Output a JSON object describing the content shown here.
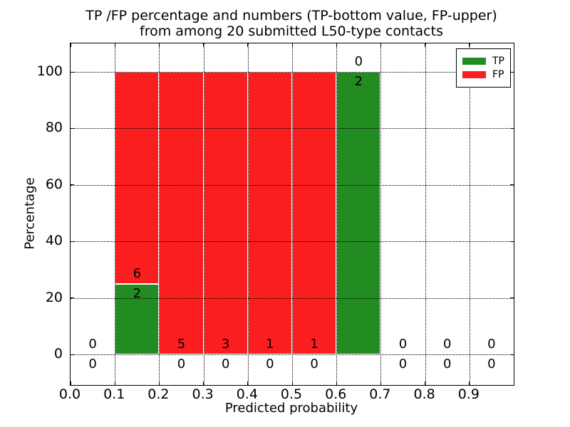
{
  "title": {
    "line1": "TP /FP percentage and numbers (TP-bottom value, FP-upper)",
    "line2": "from among 20 submitted L50-type contacts"
  },
  "axes": {
    "xlabel": "Predicted probability",
    "ylabel": "Percentage",
    "xtick_labels": [
      "0.0",
      "0.1",
      "0.2",
      "0.3",
      "0.4",
      "0.5",
      "0.6",
      "0.7",
      "0.8",
      "0.9"
    ],
    "xtick_values": [
      0.0,
      0.1,
      0.2,
      0.3,
      0.4,
      0.5,
      0.6,
      0.7,
      0.8,
      0.9
    ],
    "ytick_labels": [
      "0",
      "20",
      "40",
      "60",
      "80",
      "100"
    ],
    "ytick_values": [
      0,
      20,
      40,
      60,
      80,
      100
    ]
  },
  "legend": {
    "items": [
      {
        "label": "TP",
        "color": "#228b22"
      },
      {
        "label": "FP",
        "color": "#fb1e1e"
      }
    ]
  },
  "colors": {
    "tp": "#228b22",
    "fp": "#fb1e1e",
    "grid": "#000000",
    "background": "#ffffff"
  },
  "chart_data": {
    "type": "bar",
    "stacked": true,
    "title": "TP /FP percentage and numbers (TP-bottom value, FP-upper) from among 20 submitted L50-type contacts",
    "xlabel": "Predicted probability",
    "ylabel": "Percentage",
    "xlim": [
      0.0,
      1.0
    ],
    "ylim": [
      -11,
      110
    ],
    "grid": true,
    "legend_position": "upper right",
    "total_contacts": 20,
    "series": [
      {
        "name": "TP",
        "color": "#228b22",
        "percentages": [
          0,
          25,
          0,
          0,
          0,
          0,
          100,
          0,
          0,
          0
        ],
        "counts": [
          0,
          2,
          0,
          0,
          0,
          0,
          2,
          0,
          0,
          0
        ]
      },
      {
        "name": "FP",
        "color": "#fb1e1e",
        "percentages": [
          0,
          75,
          100,
          100,
          100,
          100,
          0,
          0,
          0,
          0
        ],
        "counts": [
          0,
          6,
          5,
          3,
          1,
          1,
          0,
          0,
          0,
          0
        ]
      }
    ],
    "bins": [
      {
        "x0": 0.0,
        "x1": 0.1,
        "tp_pct": 0,
        "fp_pct": 0,
        "tp_count": 0,
        "fp_count": 0
      },
      {
        "x0": 0.1,
        "x1": 0.2,
        "tp_pct": 25,
        "fp_pct": 75,
        "tp_count": 2,
        "fp_count": 6
      },
      {
        "x0": 0.2,
        "x1": 0.3,
        "tp_pct": 0,
        "fp_pct": 100,
        "tp_count": 0,
        "fp_count": 5
      },
      {
        "x0": 0.3,
        "x1": 0.4,
        "tp_pct": 0,
        "fp_pct": 100,
        "tp_count": 0,
        "fp_count": 3
      },
      {
        "x0": 0.4,
        "x1": 0.5,
        "tp_pct": 0,
        "fp_pct": 100,
        "tp_count": 0,
        "fp_count": 1
      },
      {
        "x0": 0.5,
        "x1": 0.6,
        "tp_pct": 0,
        "fp_pct": 100,
        "tp_count": 0,
        "fp_count": 1
      },
      {
        "x0": 0.6,
        "x1": 0.7,
        "tp_pct": 100,
        "fp_pct": 0,
        "tp_count": 2,
        "fp_count": 0
      },
      {
        "x0": 0.7,
        "x1": 0.8,
        "tp_pct": 0,
        "fp_pct": 0,
        "tp_count": 0,
        "fp_count": 0
      },
      {
        "x0": 0.8,
        "x1": 0.9,
        "tp_pct": 0,
        "fp_pct": 0,
        "tp_count": 0,
        "fp_count": 0
      },
      {
        "x0": 0.9,
        "x1": 1.0,
        "tp_pct": 0,
        "fp_pct": 0,
        "tp_count": 0,
        "fp_count": 0
      }
    ]
  }
}
